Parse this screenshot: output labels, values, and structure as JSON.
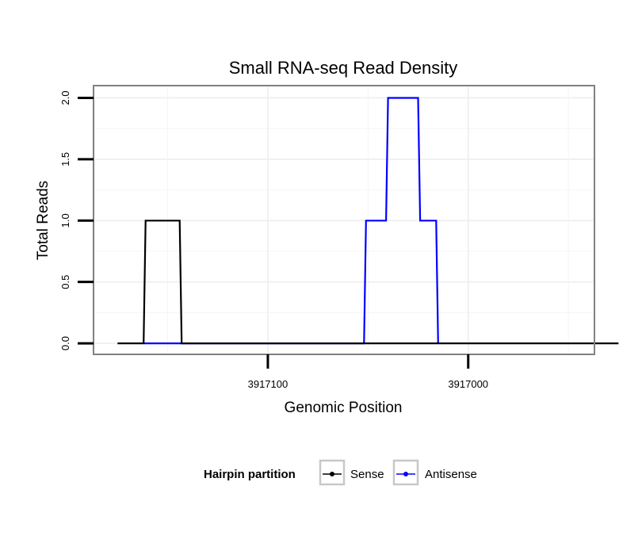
{
  "chart_data": {
    "type": "line",
    "title": "Small RNA-seq Read Density",
    "xlabel": "Genomic Position",
    "ylabel": "Total Reads",
    "xlim": [
      3917187,
      3916937
    ],
    "ylim": [
      -0.09,
      2.1
    ],
    "x_reversed": true,
    "x_ticks": [
      3917100,
      3917000
    ],
    "x_tick_labels": [
      "3917100",
      "3917000"
    ],
    "y_ticks": [
      0.0,
      0.5,
      1.0,
      1.5,
      2.0
    ],
    "y_tick_labels": [
      "0.0",
      "0.5",
      "1.0",
      "1.5",
      "2.0"
    ],
    "grid": true,
    "legend": {
      "title": "Hairpin partition",
      "position": "bottom"
    },
    "series": [
      {
        "name": "Sense",
        "color": "#000000",
        "points": [
          [
            3917175,
            0
          ],
          [
            3917162,
            0
          ],
          [
            3917161,
            1
          ],
          [
            3917144,
            1
          ],
          [
            3917143,
            0
          ],
          [
            3916925,
            0
          ]
        ]
      },
      {
        "name": "Antisense",
        "color": "#0000ff",
        "points": [
          [
            3917162,
            0
          ],
          [
            3917143,
            0
          ],
          [
            3917143,
            0
          ],
          [
            3917052,
            0
          ],
          [
            3917051,
            1
          ],
          [
            3917041,
            1
          ],
          [
            3917040,
            2
          ],
          [
            3917025,
            2
          ],
          [
            3917024,
            1
          ],
          [
            3917016,
            1
          ],
          [
            3917015,
            0
          ]
        ]
      }
    ]
  }
}
